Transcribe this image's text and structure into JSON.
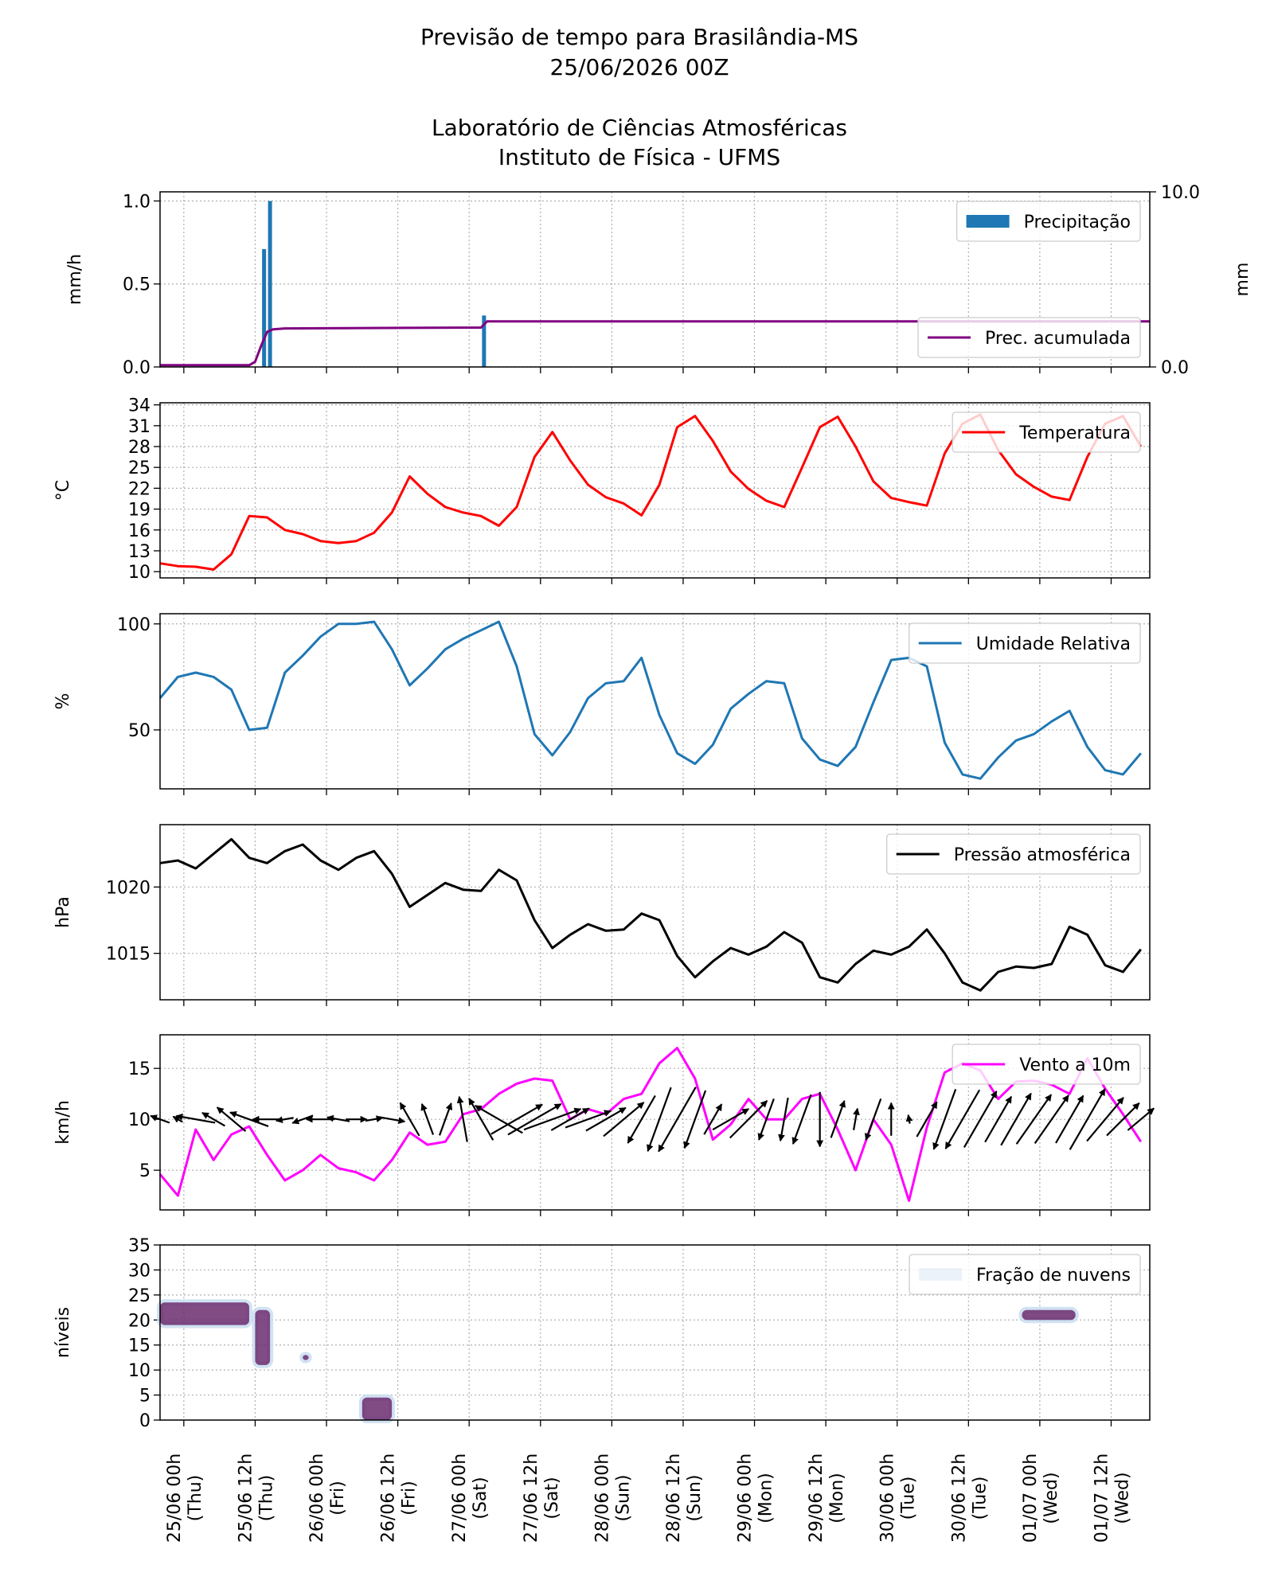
{
  "header": {
    "title": "Previsão de tempo para Brasilândia-MS",
    "subtitle": "25/06/2026 00Z",
    "institution": "Laboratório de Ciências Atmosféricas",
    "department": "Instituto de Física - UFMS"
  },
  "chart_data": [
    {
      "type": "bar",
      "ylabel": "mm/h",
      "y2label": "mm",
      "grid": true,
      "ylim": [
        0,
        1.055
      ],
      "yticks": [
        {
          "value": 0,
          "label": "0.0"
        },
        {
          "value": 0.5,
          "label": "0.5"
        },
        {
          "value": 1,
          "label": "1.0"
        }
      ],
      "y2lim": [
        0,
        10
      ],
      "y2ticks": [
        {
          "value": 0,
          "label": "0.0"
        },
        {
          "value": 10,
          "label": "10.0"
        }
      ],
      "series": [
        {
          "name": "Precipitação",
          "type": "bar",
          "color": "#1f77b4",
          "legend": "upper right",
          "x": [
            13.5,
            14.5,
            50.5
          ],
          "values": [
            0.71,
            1.0,
            0.31
          ]
        },
        {
          "name": "Prec. acumulada",
          "type": "line",
          "axis": "y2",
          "color": "#800080",
          "legend": "lower right",
          "x": [
            -4,
            11,
            12,
            13,
            14,
            15,
            17,
            50,
            51,
            162.5
          ],
          "values": [
            0.1,
            0.1,
            0.3,
            1.2,
            2.0,
            2.15,
            2.2,
            2.25,
            2.6,
            2.6
          ]
        }
      ]
    },
    {
      "type": "line",
      "ylabel": "°C",
      "grid": true,
      "legend": "upper right",
      "ylim": [
        9.1,
        34.3
      ],
      "yticks": [
        10,
        13,
        16,
        19,
        22,
        25,
        28,
        31,
        34
      ],
      "series": [
        {
          "name": "Temperatura",
          "color": "#ff0000",
          "x": [
            -4,
            -1,
            2,
            5,
            8,
            11,
            14,
            17,
            20,
            23,
            26,
            29,
            32,
            35,
            38,
            41,
            44,
            47,
            50,
            53,
            56,
            59,
            62,
            65,
            68,
            71,
            74,
            77,
            80,
            83,
            86,
            89,
            92,
            95,
            98,
            101,
            104,
            107,
            110,
            113,
            116,
            119,
            122,
            125,
            128,
            131,
            134,
            137,
            140,
            143,
            146,
            149,
            152,
            155,
            158,
            161
          ],
          "values": [
            11.2,
            10.8,
            10.7,
            10.3,
            12.5,
            18,
            17.8,
            16,
            15.4,
            14.4,
            14.1,
            14.4,
            15.6,
            18.5,
            23.7,
            21.2,
            19.3,
            18.5,
            18,
            16.6,
            19.3,
            26.5,
            30.1,
            26,
            22.5,
            20.7,
            19.8,
            18.1,
            22.5,
            30.8,
            32.4,
            28.8,
            24.4,
            21.9,
            20.2,
            19.3,
            25,
            30.8,
            32.3,
            28,
            23,
            20.6,
            20,
            19.5,
            27,
            31.3,
            32.6,
            27.5,
            24,
            22.2,
            20.8,
            20.3,
            26.5,
            31.3,
            32.4,
            28
          ]
        }
      ]
    },
    {
      "type": "line",
      "ylabel": "%",
      "grid": true,
      "legend": "upper right",
      "ylim": [
        22.2,
        104.8
      ],
      "yticks": [
        50,
        100
      ],
      "series": [
        {
          "name": "Umidade Relativa",
          "color": "#1f77b4",
          "x": [
            -4,
            -1,
            2,
            5,
            8,
            11,
            14,
            17,
            20,
            23,
            26,
            29,
            32,
            35,
            38,
            41,
            44,
            47,
            50,
            53,
            56,
            59,
            62,
            65,
            68,
            71,
            74,
            77,
            80,
            83,
            86,
            89,
            92,
            95,
            98,
            101,
            104,
            107,
            110,
            113,
            116,
            119,
            122,
            125,
            128,
            131,
            134,
            137,
            140,
            143,
            146,
            149,
            152,
            155,
            158,
            161
          ],
          "values": [
            65,
            75,
            77,
            75,
            69,
            50,
            51,
            77,
            85,
            94,
            100,
            100,
            101,
            88,
            71,
            79,
            88,
            93,
            97,
            101,
            80,
            48,
            38,
            49,
            65,
            72,
            73,
            84,
            57,
            39,
            34,
            43,
            60,
            67,
            73,
            72,
            46,
            36,
            33,
            42,
            63,
            83,
            84,
            80,
            44,
            29,
            27,
            37,
            45,
            48,
            54,
            59,
            42,
            31,
            29,
            39
          ]
        }
      ]
    },
    {
      "type": "line",
      "ylabel": "hPa",
      "grid": true,
      "legend": "upper right",
      "ylim": [
        1011.5,
        1024.7
      ],
      "yticks": [
        1015,
        1020
      ],
      "series": [
        {
          "name": "Pressão atmosférica",
          "color": "#000000",
          "x": [
            -4,
            -1,
            2,
            5,
            8,
            11,
            14,
            17,
            20,
            23,
            26,
            29,
            32,
            35,
            38,
            41,
            44,
            47,
            50,
            53,
            56,
            59,
            62,
            65,
            68,
            71,
            74,
            77,
            80,
            83,
            86,
            89,
            92,
            95,
            98,
            101,
            104,
            107,
            110,
            113,
            116,
            119,
            122,
            125,
            128,
            131,
            134,
            137,
            140,
            143,
            146,
            149,
            152,
            155,
            158,
            161
          ],
          "values": [
            1021.8,
            1022,
            1021.4,
            1022.5,
            1023.6,
            1022.2,
            1021.8,
            1022.7,
            1023.2,
            1022,
            1021.3,
            1022.2,
            1022.7,
            1021,
            1018.5,
            1019.4,
            1020.3,
            1019.8,
            1019.7,
            1021.3,
            1020.5,
            1017.5,
            1015.4,
            1016.4,
            1017.2,
            1016.7,
            1016.8,
            1018,
            1017.5,
            1014.8,
            1013.2,
            1014.4,
            1015.4,
            1014.9,
            1015.5,
            1016.6,
            1015.8,
            1013.2,
            1012.8,
            1014.2,
            1015.2,
            1014.9,
            1015.5,
            1016.8,
            1015,
            1012.8,
            1012.2,
            1013.6,
            1014,
            1013.9,
            1014.2,
            1017,
            1016.4,
            1014.1,
            1013.6,
            1015.3
          ]
        }
      ]
    },
    {
      "type": "line",
      "ylabel": "km/h",
      "grid": true,
      "legend": "upper right",
      "ylim": [
        1.1,
        18.3
      ],
      "yticks": [
        5,
        10,
        15
      ],
      "series": [
        {
          "name": "Vento a 10m",
          "color": "#ff00ff",
          "x": [
            -4,
            -1,
            2,
            5,
            8,
            11,
            14,
            17,
            20,
            23,
            26,
            29,
            32,
            35,
            38,
            41,
            44,
            47,
            50,
            53,
            56,
            59,
            62,
            65,
            68,
            71,
            74,
            77,
            80,
            83,
            86,
            89,
            92,
            95,
            98,
            101,
            104,
            107,
            110,
            113,
            116,
            119,
            122,
            125,
            128,
            131,
            134,
            137,
            140,
            143,
            146,
            149,
            152,
            155,
            158,
            161
          ],
          "values": [
            4.6,
            2.5,
            9,
            6,
            8.5,
            9.3,
            6.5,
            4,
            5,
            6.5,
            5.2,
            4.8,
            4,
            6,
            8.7,
            7.5,
            7.8,
            10.5,
            11,
            12.5,
            13.5,
            14,
            13.8,
            10,
            11,
            10.5,
            12,
            12.5,
            15.5,
            17,
            14,
            8,
            9.5,
            12,
            10,
            10,
            12,
            12.5,
            9,
            5,
            10,
            7.5,
            2,
            9.2,
            14.6,
            15.5,
            14.8,
            12,
            13.7,
            13.8,
            13.4,
            12.5,
            16,
            13,
            10.5,
            7.8
          ]
        },
        {
          "type": "quiver",
          "color": "#000000",
          "x": [
            -4,
            -1,
            2,
            5,
            8,
            11,
            14,
            17,
            20,
            23,
            26,
            29,
            32,
            35,
            38,
            41,
            44,
            47,
            50,
            53,
            56,
            59,
            62,
            65,
            68,
            71,
            74,
            77,
            80,
            83,
            86,
            89,
            92,
            95,
            98,
            101,
            104,
            107,
            110,
            113,
            116,
            119,
            122,
            125,
            128,
            131,
            134,
            137,
            140,
            143,
            146,
            149,
            152,
            155,
            158,
            161
          ],
          "values": [
            290,
            300,
            280,
            300,
            310,
            290,
            270,
            260,
            250,
            270,
            280,
            90,
            80,
            100,
            330,
            340,
            20,
            350,
            330,
            300,
            60,
            60,
            70,
            60,
            70,
            60,
            50,
            210,
            200,
            210,
            200,
            30,
            60,
            45,
            200,
            190,
            200,
            180,
            20,
            10,
            200,
            0,
            350,
            30,
            200,
            210,
            30,
            30,
            30,
            35,
            35,
            30,
            30,
            40,
            45,
            50
          ]
        }
      ]
    },
    {
      "type": "contour",
      "ylabel": "níveis",
      "grid": true,
      "legend": "upper right",
      "xlim": [
        -4,
        162.5
      ],
      "xticks": [
        {
          "value": 0,
          "label": "25/06 00h\n(Thu)"
        },
        {
          "value": 12,
          "label": "25/06 12h\n(Thu)"
        },
        {
          "value": 24,
          "label": "26/06 00h\n(Fri)"
        },
        {
          "value": 36,
          "label": "26/06 12h\n(Fri)"
        },
        {
          "value": 48,
          "label": "27/06 00h\n(Sat)"
        },
        {
          "value": 60,
          "label": "27/06 12h\n(Sat)"
        },
        {
          "value": 72,
          "label": "28/06 00h\n(Sun)"
        },
        {
          "value": 84,
          "label": "28/06 12h\n(Sun)"
        },
        {
          "value": 96,
          "label": "29/06 00h\n(Mon)"
        },
        {
          "value": 108,
          "label": "29/06 12h\n(Mon)"
        },
        {
          "value": 120,
          "label": "30/06 00h\n(Tue)"
        },
        {
          "value": 132,
          "label": "30/06 12h\n(Tue)"
        },
        {
          "value": 144,
          "label": "01/07 00h\n(Wed)"
        },
        {
          "value": 156,
          "label": "01/07 12h\n(Wed)"
        }
      ],
      "ylim": [
        0,
        35
      ],
      "yticks": [
        0,
        5,
        10,
        15,
        20,
        25,
        30,
        35
      ],
      "series": [
        {
          "name": "Fração de nuvens",
          "color": "#6b2c6e",
          "halo_color": "#c6dbef",
          "patches": [
            {
              "x": [
                -4,
                11
              ],
              "levels": [
                19,
                23.5
              ]
            },
            {
              "x": [
                12,
                14.5
              ],
              "levels": [
                11,
                22
              ]
            },
            {
              "x": [
                20,
                21
              ],
              "levels": [
                12,
                13
              ]
            },
            {
              "x": [
                30,
                35
              ],
              "levels": [
                0,
                4.5
              ]
            },
            {
              "x": [
                141,
                150
              ],
              "levels": [
                20,
                22
              ]
            }
          ]
        }
      ]
    }
  ]
}
